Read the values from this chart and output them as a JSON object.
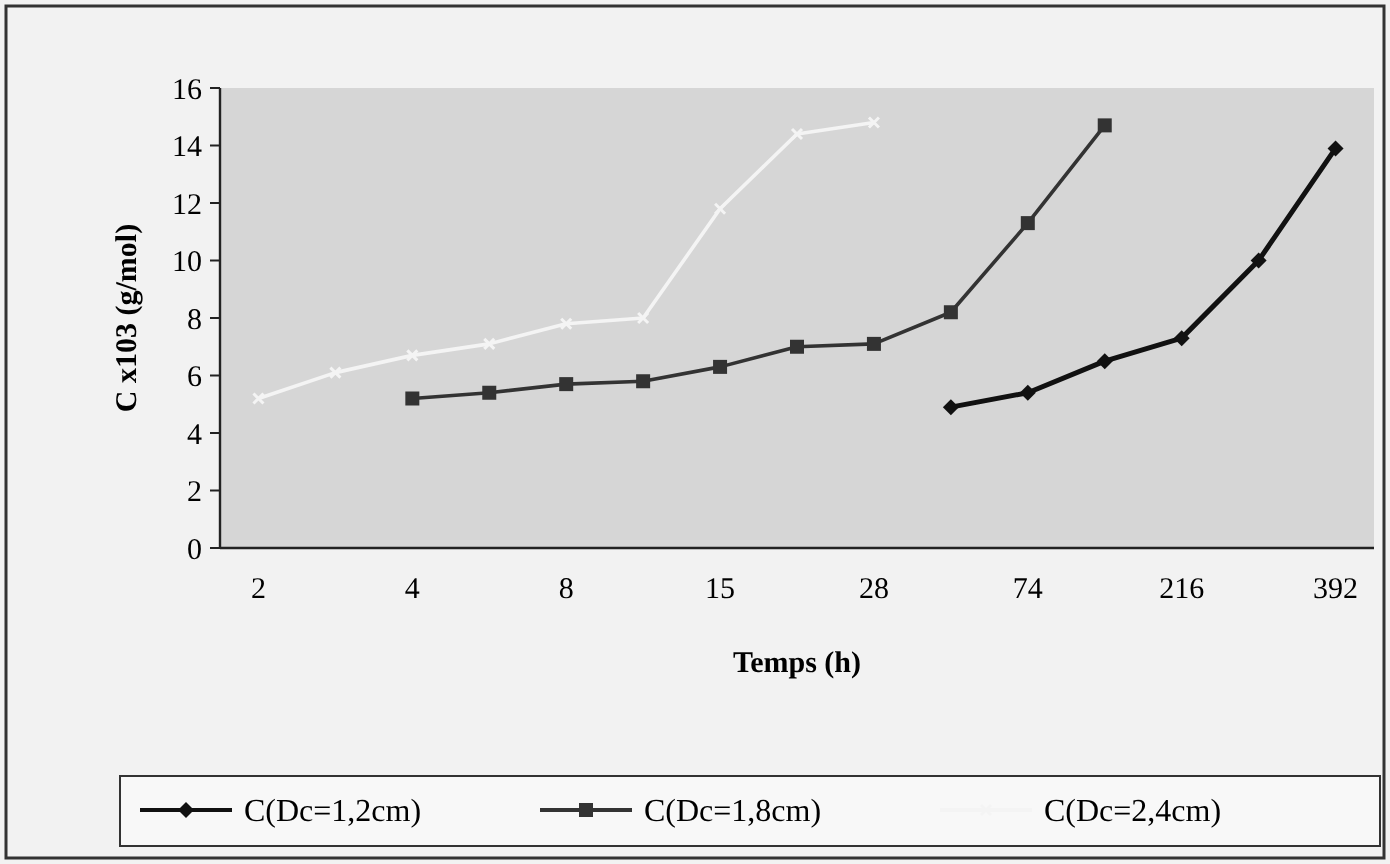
{
  "chart_data": {
    "type": "line",
    "xlabel": "Temps (h)",
    "ylabel": "C x103 (g/mol)",
    "categories": [
      "2",
      null,
      "4",
      null,
      "8",
      null,
      "15",
      null,
      "28",
      null,
      "74",
      null,
      "216",
      null,
      "392"
    ],
    "ylim": [
      0,
      16
    ],
    "yticks": [
      0,
      2,
      4,
      6,
      8,
      10,
      12,
      14,
      16
    ],
    "grid": false,
    "legend": "bottom",
    "series": [
      {
        "name": "C(Dc=1,2cm)",
        "color": "#111111",
        "marker": "diamond",
        "values": [
          null,
          null,
          null,
          null,
          null,
          null,
          null,
          null,
          null,
          4.9,
          5.4,
          6.5,
          7.3,
          10.0,
          13.9
        ]
      },
      {
        "name": "C(Dc=1,8cm)",
        "color": "#333333",
        "marker": "square",
        "values": [
          null,
          null,
          5.2,
          5.4,
          5.7,
          5.8,
          6.3,
          7.0,
          7.1,
          8.2,
          11.3,
          14.7,
          null,
          null,
          null
        ]
      },
      {
        "name": "C(Dc=2,4cm)",
        "color": "#f4f4f4",
        "marker": "cross",
        "values": [
          5.2,
          6.1,
          6.7,
          7.1,
          7.8,
          8.0,
          11.8,
          14.4,
          14.8,
          null,
          null,
          null,
          null,
          null,
          null
        ]
      }
    ]
  }
}
